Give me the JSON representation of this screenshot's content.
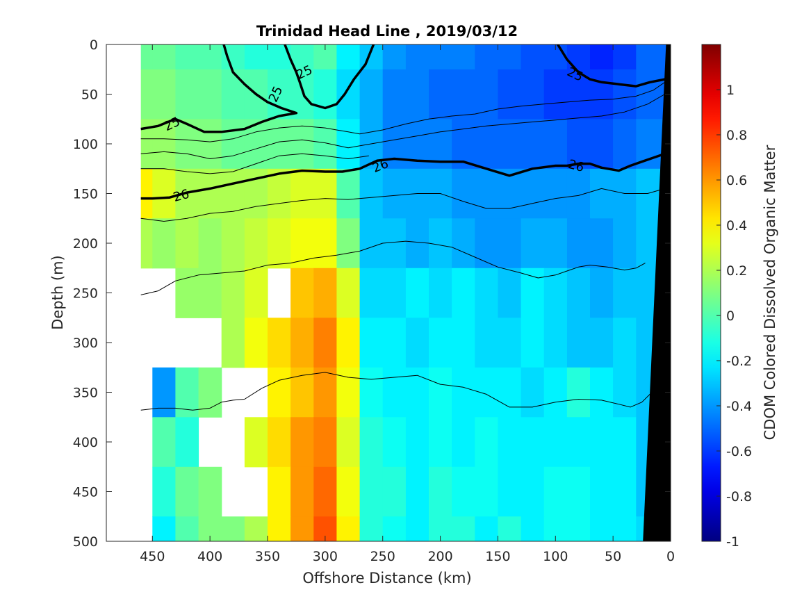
{
  "chart_data": {
    "type": "heatmap",
    "title": "Trinidad Head Line , 2019/03/12",
    "xlabel": "Offshore Distance (km)",
    "ylabel": "Depth (m)",
    "colorbar_label": "CDOM Colored Dissolved Organic Matter",
    "x_reversed": true,
    "y_reversed": true,
    "xlim": [
      0,
      490
    ],
    "ylim": [
      0,
      500
    ],
    "clim": [
      -1,
      1.2
    ],
    "x_ticks": [
      450,
      400,
      350,
      300,
      250,
      200,
      150,
      100,
      50,
      0
    ],
    "y_ticks": [
      0,
      50,
      100,
      150,
      200,
      250,
      300,
      350,
      400,
      450,
      500
    ],
    "colorbar_ticks": [
      1,
      0.8,
      0.6,
      0.4,
      0.2,
      0,
      -0.2,
      -0.4,
      -0.6,
      -0.8,
      -1
    ],
    "colormap": "jet",
    "x": [
      460,
      440,
      420,
      400,
      380,
      360,
      340,
      320,
      300,
      280,
      260,
      240,
      220,
      200,
      180,
      160,
      140,
      120,
      100,
      80,
      60,
      40,
      20
    ],
    "depth": [
      0,
      50,
      100,
      150,
      200,
      250,
      300,
      350,
      400,
      450,
      500
    ],
    "values": [
      [
        0.05,
        0.05,
        0.0,
        0.0,
        -0.05,
        -0.1,
        -0.1,
        -0.05,
        0.0,
        -0.2,
        -0.3,
        -0.4,
        -0.45,
        -0.45,
        -0.45,
        -0.5,
        -0.5,
        -0.55,
        -0.55,
        -0.6,
        -0.65,
        -0.6,
        -0.5
      ],
      [
        0.1,
        0.1,
        0.05,
        0.05,
        0.0,
        0.0,
        -0.05,
        -0.05,
        -0.1,
        -0.25,
        -0.35,
        -0.45,
        -0.45,
        -0.5,
        -0.5,
        -0.5,
        -0.55,
        -0.55,
        -0.6,
        -0.6,
        -0.6,
        -0.55,
        -0.5
      ],
      [
        0.15,
        0.15,
        0.1,
        0.1,
        0.05,
        0.05,
        0.05,
        0.05,
        0.0,
        -0.2,
        -0.35,
        -0.45,
        -0.45,
        -0.45,
        -0.5,
        -0.5,
        -0.5,
        -0.5,
        -0.5,
        -0.55,
        -0.55,
        -0.5,
        -0.45
      ],
      [
        0.4,
        0.3,
        0.2,
        0.2,
        0.2,
        0.2,
        0.25,
        0.3,
        0.3,
        0.0,
        -0.3,
        -0.35,
        -0.35,
        -0.35,
        -0.4,
        -0.4,
        -0.4,
        -0.4,
        -0.4,
        -0.4,
        -0.35,
        -0.35,
        -0.3
      ],
      [
        0.2,
        0.15,
        0.2,
        0.15,
        0.2,
        0.25,
        0.3,
        0.35,
        0.35,
        0.1,
        -0.3,
        -0.3,
        -0.35,
        -0.3,
        -0.35,
        -0.4,
        -0.4,
        -0.35,
        -0.35,
        -0.4,
        -0.4,
        -0.35,
        -0.3
      ],
      [
        null,
        null,
        0.15,
        0.15,
        0.2,
        0.3,
        null,
        0.5,
        0.55,
        0.3,
        -0.25,
        -0.25,
        -0.2,
        -0.25,
        -0.2,
        -0.25,
        -0.3,
        -0.2,
        -0.25,
        -0.3,
        -0.35,
        -0.3,
        -0.3
      ],
      [
        null,
        null,
        null,
        null,
        0.2,
        0.35,
        0.45,
        0.55,
        0.65,
        0.4,
        -0.2,
        -0.2,
        -0.25,
        -0.2,
        -0.2,
        -0.25,
        -0.25,
        -0.2,
        -0.25,
        -0.3,
        -0.3,
        -0.25,
        -0.3
      ],
      [
        null,
        -0.4,
        0.0,
        0.1,
        null,
        null,
        0.4,
        0.5,
        0.6,
        0.35,
        -0.15,
        -0.2,
        -0.2,
        -0.15,
        -0.2,
        -0.2,
        -0.2,
        -0.25,
        -0.2,
        -0.1,
        -0.2,
        -0.25,
        -0.3
      ],
      [
        null,
        0.0,
        -0.1,
        null,
        null,
        0.3,
        0.45,
        0.6,
        0.65,
        0.3,
        -0.1,
        -0.15,
        -0.2,
        -0.15,
        -0.2,
        -0.15,
        -0.2,
        -0.2,
        -0.2,
        -0.2,
        -0.2,
        -0.2,
        -0.3
      ],
      [
        null,
        -0.1,
        0.05,
        0.1,
        null,
        null,
        0.4,
        0.6,
        0.7,
        0.35,
        -0.1,
        -0.1,
        -0.2,
        -0.1,
        -0.15,
        -0.15,
        -0.2,
        -0.2,
        -0.15,
        -0.15,
        -0.2,
        -0.2,
        -0.3
      ],
      [
        null,
        -0.2,
        0.0,
        0.1,
        0.1,
        0.2,
        0.4,
        0.6,
        0.75,
        0.4,
        -0.1,
        -0.15,
        -0.2,
        -0.1,
        -0.1,
        -0.2,
        -0.1,
        -0.2,
        -0.15,
        -0.15,
        -0.2,
        -0.2,
        -0.25
      ]
    ],
    "contours": [
      {
        "label": "25",
        "bold": true,
        "points": [
          [
            460,
            85
          ],
          [
            445,
            82
          ],
          [
            430,
            75
          ],
          [
            420,
            80
          ],
          [
            405,
            88
          ],
          [
            390,
            88
          ],
          [
            370,
            85
          ],
          [
            355,
            78
          ],
          [
            340,
            72
          ],
          [
            330,
            70
          ],
          [
            325,
            69
          ],
          [
            338,
            64
          ],
          [
            350,
            58
          ],
          [
            360,
            50
          ],
          [
            370,
            40
          ],
          [
            380,
            28
          ],
          [
            385,
            12
          ],
          [
            388,
            0
          ]
        ]
      },
      {
        "label": "25",
        "bold": true,
        "points": [
          [
            335,
            0
          ],
          [
            330,
            15
          ],
          [
            325,
            28
          ],
          [
            322,
            38
          ],
          [
            318,
            52
          ],
          [
            312,
            60
          ],
          [
            300,
            64
          ],
          [
            290,
            60
          ],
          [
            283,
            50
          ],
          [
            275,
            35
          ],
          [
            265,
            20
          ],
          [
            258,
            0
          ]
        ]
      },
      {
        "label": "25",
        "bold": true,
        "points": [
          [
            98,
            0
          ],
          [
            90,
            15
          ],
          [
            80,
            28
          ],
          [
            70,
            35
          ],
          [
            60,
            38
          ],
          [
            45,
            40
          ],
          [
            30,
            42
          ],
          [
            18,
            38
          ],
          [
            5,
            35
          ],
          [
            0,
            35
          ]
        ]
      },
      {
        "label": "26",
        "bold": true,
        "points": [
          [
            460,
            155
          ],
          [
            450,
            155
          ],
          [
            435,
            154
          ],
          [
            420,
            149
          ],
          [
            400,
            145
          ],
          [
            380,
            140
          ],
          [
            360,
            135
          ],
          [
            340,
            130
          ],
          [
            320,
            127
          ],
          [
            300,
            128
          ],
          [
            285,
            128
          ],
          [
            270,
            125
          ],
          [
            255,
            117
          ],
          [
            240,
            115
          ],
          [
            220,
            117
          ],
          [
            200,
            118
          ],
          [
            180,
            118
          ],
          [
            160,
            125
          ],
          [
            140,
            132
          ],
          [
            120,
            125
          ],
          [
            100,
            122
          ],
          [
            90,
            122
          ],
          [
            80,
            120
          ],
          [
            70,
            120
          ],
          [
            60,
            124
          ],
          [
            45,
            127
          ],
          [
            35,
            122
          ],
          [
            25,
            118
          ],
          [
            15,
            114
          ],
          [
            5,
            110
          ],
          [
            0,
            108
          ]
        ]
      },
      {
        "label": "",
        "bold": false,
        "points": [
          [
            460,
            95
          ],
          [
            440,
            95
          ],
          [
            420,
            96
          ],
          [
            400,
            98
          ],
          [
            380,
            95
          ],
          [
            360,
            88
          ],
          [
            340,
            84
          ],
          [
            320,
            82
          ],
          [
            300,
            84
          ],
          [
            290,
            86
          ],
          [
            280,
            88
          ],
          [
            270,
            90
          ],
          [
            250,
            86
          ],
          [
            230,
            80
          ],
          [
            210,
            75
          ],
          [
            190,
            72
          ],
          [
            170,
            70
          ],
          [
            150,
            65
          ],
          [
            130,
            62
          ],
          [
            110,
            60
          ],
          [
            90,
            58
          ],
          [
            70,
            56
          ],
          [
            50,
            55
          ],
          [
            30,
            52
          ],
          [
            15,
            46
          ],
          [
            5,
            38
          ],
          [
            0,
            30
          ]
        ]
      },
      {
        "label": "",
        "bold": false,
        "points": [
          [
            460,
            110
          ],
          [
            440,
            108
          ],
          [
            420,
            110
          ],
          [
            400,
            115
          ],
          [
            380,
            112
          ],
          [
            360,
            105
          ],
          [
            340,
            98
          ],
          [
            320,
            96
          ],
          [
            300,
            99
          ],
          [
            280,
            104
          ],
          [
            260,
            100
          ],
          [
            240,
            96
          ],
          [
            220,
            92
          ],
          [
            200,
            88
          ],
          [
            180,
            85
          ],
          [
            160,
            82
          ],
          [
            140,
            80
          ],
          [
            120,
            78
          ],
          [
            100,
            76
          ],
          [
            80,
            74
          ],
          [
            60,
            72
          ],
          [
            40,
            68
          ],
          [
            20,
            60
          ],
          [
            5,
            50
          ],
          [
            0,
            45
          ]
        ]
      },
      {
        "label": "",
        "bold": false,
        "points": [
          [
            460,
            125
          ],
          [
            440,
            125
          ],
          [
            420,
            128
          ],
          [
            400,
            130
          ],
          [
            380,
            128
          ],
          [
            360,
            120
          ],
          [
            340,
            112
          ],
          [
            320,
            110
          ],
          [
            300,
            112
          ],
          [
            280,
            115
          ],
          [
            262,
            112
          ]
        ]
      },
      {
        "label": "",
        "bold": false,
        "points": [
          [
            460,
            175
          ],
          [
            440,
            178
          ],
          [
            420,
            175
          ],
          [
            400,
            170
          ],
          [
            380,
            168
          ],
          [
            360,
            163
          ],
          [
            340,
            160
          ],
          [
            320,
            157
          ],
          [
            300,
            155
          ],
          [
            280,
            156
          ],
          [
            260,
            154
          ],
          [
            240,
            152
          ],
          [
            220,
            150
          ],
          [
            200,
            150
          ],
          [
            180,
            158
          ],
          [
            160,
            165
          ],
          [
            140,
            165
          ],
          [
            120,
            160
          ],
          [
            100,
            155
          ],
          [
            80,
            152
          ],
          [
            60,
            145
          ],
          [
            40,
            150
          ],
          [
            20,
            150
          ],
          [
            5,
            145
          ],
          [
            0,
            140
          ]
        ]
      },
      {
        "label": "",
        "bold": false,
        "points": [
          [
            460,
            252
          ],
          [
            445,
            248
          ],
          [
            430,
            238
          ],
          [
            410,
            232
          ],
          [
            390,
            230
          ],
          [
            370,
            228
          ],
          [
            350,
            222
          ],
          [
            330,
            220
          ],
          [
            310,
            215
          ],
          [
            290,
            212
          ],
          [
            270,
            208
          ],
          [
            250,
            200
          ],
          [
            230,
            198
          ],
          [
            210,
            200
          ],
          [
            190,
            204
          ],
          [
            170,
            214
          ],
          [
            150,
            224
          ],
          [
            130,
            230
          ],
          [
            115,
            235
          ],
          [
            100,
            232
          ],
          [
            90,
            228
          ],
          [
            80,
            224
          ],
          [
            70,
            222
          ],
          [
            55,
            224
          ],
          [
            40,
            227
          ],
          [
            30,
            225
          ],
          [
            22,
            220
          ]
        ]
      },
      {
        "label": "",
        "bold": false,
        "points": [
          [
            460,
            368
          ],
          [
            445,
            366
          ],
          [
            430,
            366
          ],
          [
            415,
            368
          ],
          [
            400,
            366
          ],
          [
            390,
            360
          ],
          [
            380,
            358
          ],
          [
            370,
            357
          ],
          [
            355,
            346
          ],
          [
            340,
            338
          ],
          [
            320,
            333
          ],
          [
            300,
            330
          ],
          [
            280,
            335
          ],
          [
            260,
            337
          ],
          [
            240,
            335
          ],
          [
            220,
            333
          ],
          [
            200,
            342
          ],
          [
            180,
            345
          ],
          [
            160,
            352
          ],
          [
            140,
            365
          ],
          [
            120,
            365
          ],
          [
            100,
            360
          ],
          [
            80,
            357
          ],
          [
            60,
            358
          ],
          [
            45,
            362
          ],
          [
            35,
            365
          ],
          [
            25,
            360
          ],
          [
            18,
            352
          ]
        ]
      }
    ],
    "contour_labels": [
      {
        "text": "25",
        "x": 343,
        "y": 50,
        "rotate": -65
      },
      {
        "text": "25",
        "x": 318,
        "y": 28,
        "rotate": -25
      },
      {
        "text": "25",
        "x": 433,
        "y": 80,
        "rotate": -25
      },
      {
        "text": "25",
        "x": 83,
        "y": 30,
        "rotate": 25
      },
      {
        "text": "26",
        "x": 425,
        "y": 152,
        "rotate": -15
      },
      {
        "text": "26",
        "x": 252,
        "y": 122,
        "rotate": -22
      },
      {
        "text": "26",
        "x": 82,
        "y": 122,
        "rotate": 15
      }
    ],
    "seafloor": [
      [
        24,
        500
      ],
      [
        0,
        500
      ],
      [
        0,
        0
      ],
      [
        4,
        0
      ]
    ]
  }
}
